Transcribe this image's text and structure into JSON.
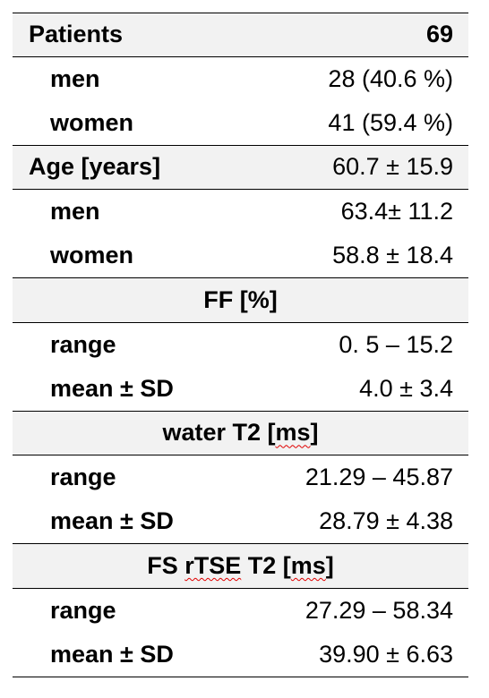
{
  "rows": [
    {
      "label": "Patients",
      "value": "69"
    },
    {
      "label": "men",
      "value": "28 (40.6 %)"
    },
    {
      "label": "women",
      "value": "41 (59.4 %)"
    },
    {
      "label": "Age [years]",
      "value": "60.7 ± 15.9"
    },
    {
      "label": "men",
      "value": "63.4± 11.2"
    },
    {
      "label": "women",
      "value": "58.8 ± 18.4"
    },
    {
      "header": "FF [%]"
    },
    {
      "label": "range",
      "value": "0. 5 – 15.2"
    },
    {
      "label": "mean ± SD",
      "value": "4.0 ± 3.4"
    },
    {
      "header_a": "water T2 [",
      "header_b": "ms",
      "header_c": "]"
    },
    {
      "label": "range",
      "value": "21.29 – 45.87"
    },
    {
      "label": "mean ± SD",
      "value": "28.79 ± 4.38"
    },
    {
      "header_a": "FS ",
      "header_b": "rTSE",
      "header_c": " T2 [",
      "header_d": "ms",
      "header_e": "]"
    },
    {
      "label": "range",
      "value": "27.29 – 58.34"
    },
    {
      "label": "mean ± SD",
      "value": "39.90 ± 6.63"
    }
  ]
}
